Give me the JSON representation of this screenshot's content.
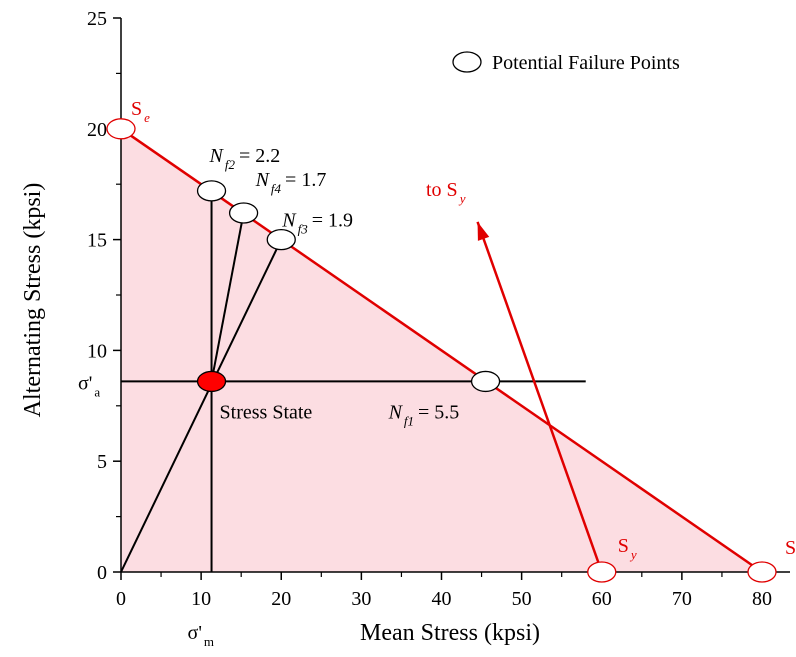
{
  "chart_data": {
    "type": "line",
    "xlabel": "Mean Stress (kpsi)",
    "ylabel": "Alternating Stress (kpsi)",
    "xlim": [
      0,
      80
    ],
    "ylim": [
      0,
      25
    ],
    "x_ticks": [
      0,
      10,
      20,
      30,
      40,
      50,
      60,
      70,
      80
    ],
    "y_ticks": [
      0,
      5,
      10,
      15,
      20,
      25
    ],
    "grid": false,
    "legend": {
      "position": "top-right",
      "label": "Potential Failure Points"
    },
    "colors": {
      "region": "#fcdde2",
      "goodman": "#e00000",
      "load_lines": "#000000",
      "stress_state": "#ff0000"
    },
    "goodman_line": {
      "x": [
        0,
        80
      ],
      "y": [
        20,
        0
      ]
    },
    "yield_direction_line": {
      "x": [
        60,
        44.5
      ],
      "y": [
        0,
        15.8
      ],
      "label": "to S",
      "label_sub": "y"
    },
    "stress_state": {
      "x": 11.3,
      "y": 8.6,
      "label": "Stress State",
      "sigma_a_label": "σ'",
      "sigma_a_sub": "a",
      "sigma_m_label": "σ'",
      "sigma_m_sub": "m"
    },
    "strength_points": [
      {
        "name": "S",
        "sub": "e",
        "x": 0,
        "y": 20
      },
      {
        "name": "S",
        "sub": "y",
        "x": 60,
        "y": 0
      },
      {
        "name": "S",
        "sub": "u",
        "x": 80,
        "y": 0
      }
    ],
    "failure_points": [
      {
        "N": "N",
        "sub": "f1",
        "value": "= 5.5",
        "x": 45.5,
        "y": 8.6
      },
      {
        "N": "N",
        "sub": "f2",
        "value": "= 2.2",
        "x": 11.3,
        "y": 17.2
      },
      {
        "N": "N",
        "sub": "f3",
        "value": "= 1.9",
        "x": 20.0,
        "y": 15.0
      },
      {
        "N": "N",
        "sub": "f4",
        "value": "= 1.7",
        "x": 15.3,
        "y": 16.2
      }
    ],
    "horizontal_line": {
      "x": [
        0,
        58
      ],
      "y": 8.6
    },
    "vertical_line": {
      "x": 11.3,
      "y": [
        0,
        17.2
      ]
    },
    "radial_lines_from": {
      "x": 0,
      "y": 0
    }
  }
}
